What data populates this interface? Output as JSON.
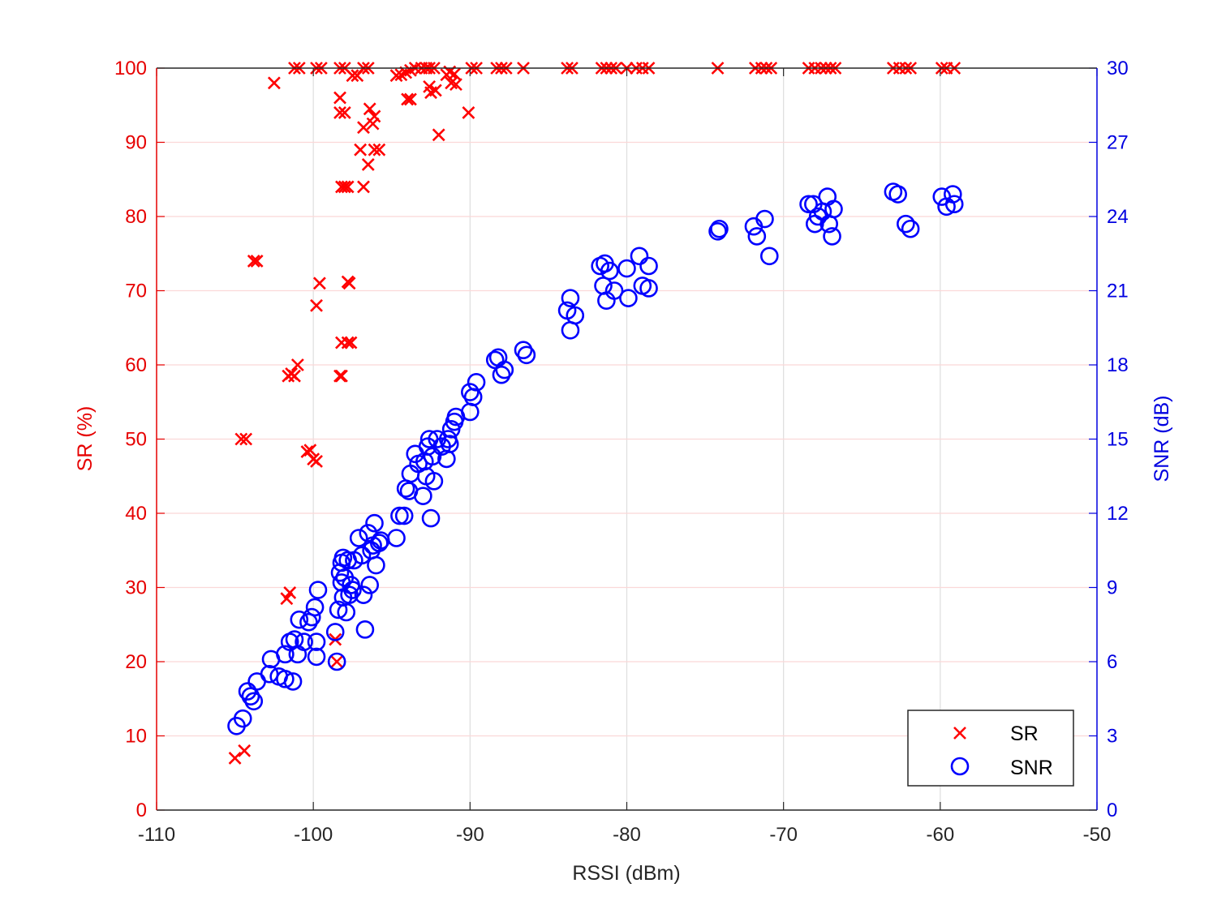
{
  "chart_data": {
    "type": "scatter",
    "xlabel": "RSSI (dBm)",
    "ylabel_left": "SR (%)",
    "ylabel_right": "SNR (dB)",
    "xlim": [
      -110,
      -50
    ],
    "ylim_left": [
      0,
      100
    ],
    "ylim_right": [
      0,
      30
    ],
    "x_ticks": [
      "-110",
      "-100",
      "-90",
      "-80",
      "-70",
      "-60",
      "-50"
    ],
    "y_left_ticks": [
      "0",
      "10",
      "20",
      "30",
      "40",
      "50",
      "60",
      "70",
      "80",
      "90",
      "100"
    ],
    "y_right_ticks": [
      "0",
      "3",
      "6",
      "9",
      "12",
      "15",
      "18",
      "21",
      "24",
      "27",
      "30"
    ],
    "grid": true,
    "legend_position": "bottom-right",
    "colors": {
      "left_axis": "#e60000",
      "right_axis": "#0000e0",
      "sr": "#ff0000",
      "snr": "#0000ff"
    },
    "series": [
      {
        "name": "SR",
        "axis": "left",
        "marker": "x",
        "points": [
          [
            -105.0,
            7
          ],
          [
            -104.4,
            8
          ],
          [
            -104.6,
            50
          ],
          [
            -104.3,
            50
          ],
          [
            -103.8,
            74
          ],
          [
            -103.6,
            74
          ],
          [
            -102.5,
            98
          ],
          [
            -101.7,
            28.5
          ],
          [
            -101.5,
            29.3
          ],
          [
            -101.6,
            58.5
          ],
          [
            -101.4,
            58.8
          ],
          [
            -101.2,
            58.5
          ],
          [
            -101.0,
            60
          ],
          [
            -101.2,
            100
          ],
          [
            -100.9,
            100
          ],
          [
            -100.4,
            48.3
          ],
          [
            -100.2,
            48.5
          ],
          [
            -100.0,
            47.3
          ],
          [
            -99.8,
            47
          ],
          [
            -99.8,
            68
          ],
          [
            -99.6,
            71
          ],
          [
            -99.8,
            100
          ],
          [
            -99.5,
            100
          ],
          [
            -98.6,
            23
          ],
          [
            -98.5,
            20
          ],
          [
            -98.3,
            58.5
          ],
          [
            -98.2,
            58.5
          ],
          [
            -98.2,
            63
          ],
          [
            -98.2,
            84
          ],
          [
            -98.0,
            84
          ],
          [
            -98.3,
            94
          ],
          [
            -98.0,
            94
          ],
          [
            -98.3,
            96
          ],
          [
            -98.3,
            100
          ],
          [
            -98.0,
            100
          ],
          [
            -97.8,
            71.2
          ],
          [
            -97.7,
            71
          ],
          [
            -97.8,
            63
          ],
          [
            -97.6,
            63
          ],
          [
            -97.8,
            84
          ],
          [
            -97.5,
            99
          ],
          [
            -97.2,
            99
          ],
          [
            -97.0,
            89
          ],
          [
            -96.8,
            84
          ],
          [
            -96.8,
            92
          ],
          [
            -96.8,
            100
          ],
          [
            -96.5,
            100
          ],
          [
            -96.5,
            87
          ],
          [
            -96.4,
            94.5
          ],
          [
            -96.2,
            92.5
          ],
          [
            -96.1,
            93.5
          ],
          [
            -96.1,
            89
          ],
          [
            -95.8,
            89
          ],
          [
            -94.7,
            99
          ],
          [
            -94.4,
            99.1
          ],
          [
            -94.1,
            99.4
          ],
          [
            -94.0,
            95.8
          ],
          [
            -93.8,
            95.8
          ],
          [
            -93.8,
            99.7
          ],
          [
            -93.5,
            100
          ],
          [
            -93.1,
            100
          ],
          [
            -92.8,
            100
          ],
          [
            -92.6,
            97.5
          ],
          [
            -92.6,
            100
          ],
          [
            -92.5,
            96.7
          ],
          [
            -92.3,
            100
          ],
          [
            -92.2,
            97
          ],
          [
            -92.0,
            91
          ],
          [
            -91.5,
            99.1
          ],
          [
            -91.3,
            99.5
          ],
          [
            -91.2,
            98
          ],
          [
            -91.0,
            99.2
          ],
          [
            -90.9,
            97.8
          ],
          [
            -90.1,
            94
          ],
          [
            -89.9,
            100
          ],
          [
            -89.6,
            100
          ],
          [
            -88.3,
            100
          ],
          [
            -88.0,
            100
          ],
          [
            -87.7,
            100
          ],
          [
            -86.6,
            100
          ],
          [
            -83.8,
            100
          ],
          [
            -83.5,
            100
          ],
          [
            -81.6,
            100
          ],
          [
            -81.3,
            100
          ],
          [
            -81.0,
            100
          ],
          [
            -80.7,
            100
          ],
          [
            -80.0,
            100
          ],
          [
            -79.4,
            100
          ],
          [
            -79.0,
            100
          ],
          [
            -78.6,
            100
          ],
          [
            -74.2,
            100
          ],
          [
            -71.8,
            100
          ],
          [
            -71.4,
            100
          ],
          [
            -71.1,
            100
          ],
          [
            -70.8,
            100
          ],
          [
            -68.4,
            100
          ],
          [
            -68.0,
            100
          ],
          [
            -67.6,
            100
          ],
          [
            -67.3,
            100
          ],
          [
            -67.0,
            100
          ],
          [
            -66.7,
            100
          ],
          [
            -63.0,
            100
          ],
          [
            -62.6,
            100
          ],
          [
            -62.2,
            100
          ],
          [
            -61.9,
            100
          ],
          [
            -59.9,
            100
          ],
          [
            -59.6,
            100
          ],
          [
            -59.1,
            100
          ]
        ]
      },
      {
        "name": "SNR",
        "axis": "right",
        "marker": "o",
        "points": [
          [
            -104.9,
            3.4
          ],
          [
            -104.5,
            3.7
          ],
          [
            -104.2,
            4.8
          ],
          [
            -104.0,
            4.6
          ],
          [
            -103.8,
            4.4
          ],
          [
            -103.6,
            5.2
          ],
          [
            -102.8,
            5.5
          ],
          [
            -102.7,
            6.1
          ],
          [
            -102.2,
            5.4
          ],
          [
            -101.8,
            5.3
          ],
          [
            -101.8,
            6.3
          ],
          [
            -101.5,
            6.8
          ],
          [
            -101.3,
            5.2
          ],
          [
            -101.2,
            6.9
          ],
          [
            -101.0,
            6.3
          ],
          [
            -100.9,
            7.7
          ],
          [
            -100.6,
            6.8
          ],
          [
            -100.3,
            7.6
          ],
          [
            -100.1,
            7.8
          ],
          [
            -99.8,
            6.2
          ],
          [
            -99.8,
            6.8
          ],
          [
            -99.9,
            8.2
          ],
          [
            -99.7,
            8.9
          ],
          [
            -98.6,
            7.2
          ],
          [
            -98.5,
            6.0
          ],
          [
            -98.4,
            8.1
          ],
          [
            -98.3,
            9.6
          ],
          [
            -98.2,
            10.0
          ],
          [
            -98.1,
            10.2
          ],
          [
            -98.2,
            9.2
          ],
          [
            -98.1,
            8.6
          ],
          [
            -98.0,
            9.4
          ],
          [
            -97.9,
            8.0
          ],
          [
            -97.8,
            10.1
          ],
          [
            -97.7,
            8.7
          ],
          [
            -97.6,
            9.1
          ],
          [
            -97.5,
            8.9
          ],
          [
            -97.4,
            10.1
          ],
          [
            -97.1,
            11.0
          ],
          [
            -96.9,
            10.3
          ],
          [
            -96.8,
            8.7
          ],
          [
            -96.7,
            7.3
          ],
          [
            -96.5,
            11.2
          ],
          [
            -96.4,
            9.1
          ],
          [
            -96.3,
            10.5
          ],
          [
            -96.2,
            10.7
          ],
          [
            -96.1,
            11.6
          ],
          [
            -96.0,
            9.9
          ],
          [
            -95.8,
            10.8
          ],
          [
            -95.7,
            10.9
          ],
          [
            -94.7,
            11.0
          ],
          [
            -94.5,
            11.9
          ],
          [
            -94.2,
            11.9
          ],
          [
            -94.1,
            13.0
          ],
          [
            -93.9,
            12.9
          ],
          [
            -93.8,
            13.6
          ],
          [
            -93.5,
            14.4
          ],
          [
            -93.3,
            14.0
          ],
          [
            -93.0,
            12.7
          ],
          [
            -92.9,
            14.1
          ],
          [
            -92.8,
            13.5
          ],
          [
            -92.7,
            14.7
          ],
          [
            -92.6,
            15.0
          ],
          [
            -92.5,
            11.8
          ],
          [
            -92.4,
            14.3
          ],
          [
            -92.3,
            13.3
          ],
          [
            -92.1,
            15.0
          ],
          [
            -91.8,
            14.7
          ],
          [
            -91.5,
            14.2
          ],
          [
            -91.4,
            15.0
          ],
          [
            -91.3,
            14.8
          ],
          [
            -91.2,
            15.4
          ],
          [
            -91.0,
            15.7
          ],
          [
            -90.9,
            15.9
          ],
          [
            -90.0,
            16.1
          ],
          [
            -90.0,
            16.9
          ],
          [
            -89.8,
            16.7
          ],
          [
            -89.6,
            17.3
          ],
          [
            -88.4,
            18.2
          ],
          [
            -88.2,
            18.3
          ],
          [
            -88.0,
            17.6
          ],
          [
            -87.8,
            17.8
          ],
          [
            -86.6,
            18.6
          ],
          [
            -86.4,
            18.4
          ],
          [
            -83.8,
            20.2
          ],
          [
            -83.6,
            19.4
          ],
          [
            -83.6,
            20.7
          ],
          [
            -83.3,
            20.0
          ],
          [
            -81.7,
            22.0
          ],
          [
            -81.5,
            21.2
          ],
          [
            -81.4,
            22.1
          ],
          [
            -81.3,
            20.6
          ],
          [
            -81.1,
            21.8
          ],
          [
            -80.8,
            21.0
          ],
          [
            -80.0,
            21.9
          ],
          [
            -79.9,
            20.7
          ],
          [
            -79.2,
            22.4
          ],
          [
            -79.0,
            21.2
          ],
          [
            -78.6,
            21.1
          ],
          [
            -78.6,
            22.0
          ],
          [
            -74.2,
            23.4
          ],
          [
            -74.1,
            23.5
          ],
          [
            -71.9,
            23.6
          ],
          [
            -71.7,
            23.2
          ],
          [
            -71.2,
            23.9
          ],
          [
            -70.9,
            22.4
          ],
          [
            -68.4,
            24.5
          ],
          [
            -68.1,
            24.5
          ],
          [
            -68.0,
            23.7
          ],
          [
            -67.8,
            24.0
          ],
          [
            -67.5,
            24.2
          ],
          [
            -67.2,
            24.8
          ],
          [
            -67.1,
            23.7
          ],
          [
            -66.9,
            23.2
          ],
          [
            -66.8,
            24.3
          ],
          [
            -63.0,
            25.0
          ],
          [
            -62.7,
            24.9
          ],
          [
            -62.2,
            23.7
          ],
          [
            -61.9,
            23.5
          ],
          [
            -59.9,
            24.8
          ],
          [
            -59.6,
            24.4
          ],
          [
            -59.2,
            24.9
          ],
          [
            -59.1,
            24.5
          ]
        ]
      }
    ]
  }
}
